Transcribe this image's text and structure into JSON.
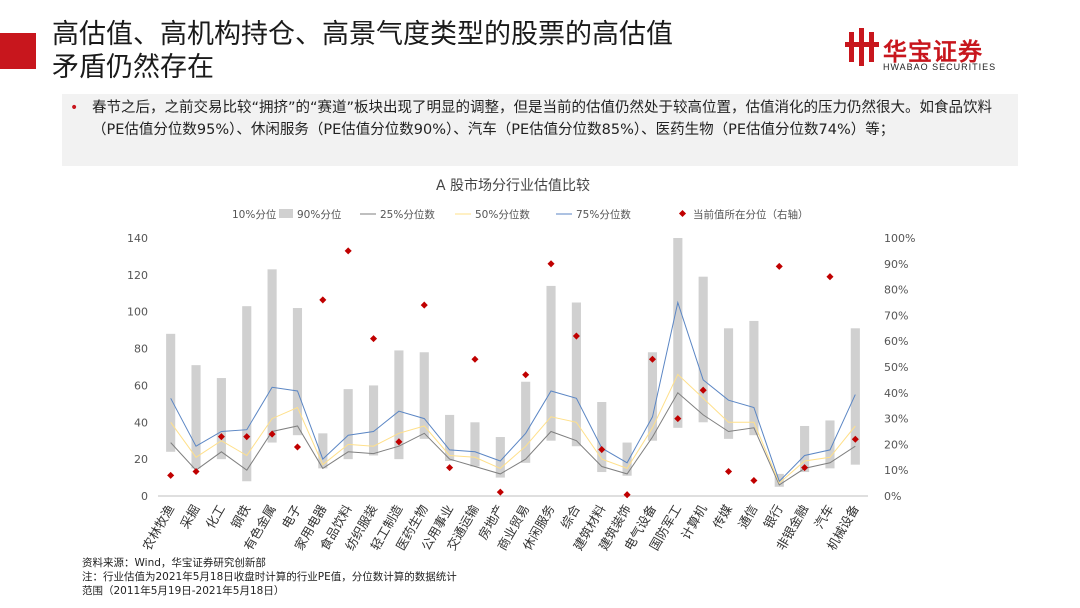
{
  "header": {
    "title_line1": "高估值、高机构持仓、高景气度类型的股票的高估值",
    "title_line2": "矛盾仍然存在",
    "logo_cn": "华宝证券",
    "logo_en": "HWABAO SECURITIES",
    "brand_color": "#c8161d"
  },
  "bullet": {
    "text": "春节之后，之前交易比较“拥挤”的“赛道”板块出现了明显的调整，但是当前的估值仍然处于较高位置，估值消化的压力仍然很大。如食品饮料（PE估值分位数95%）、休闲服务（PE估值分位数90%）、汽车（PE估值分位数85%）、医药生物（PE估值分位数74%）等；"
  },
  "chart_data": {
    "type": "bar",
    "title": "A 股市场分行业估值比较",
    "categories": [
      "农林牧渔",
      "采掘",
      "化工",
      "钢铁",
      "有色金属",
      "电子",
      "家用电器",
      "食品饮料",
      "纺织服装",
      "轻工制造",
      "医药生物",
      "公用事业",
      "交通运输",
      "房地产",
      "商业贸易",
      "休闲服务",
      "综合",
      "建筑材料",
      "建筑装饰",
      "电气设备",
      "国防军工",
      "计算机",
      "传媒",
      "通信",
      "银行",
      "非银金融",
      "汽车",
      "机械设备"
    ],
    "left_axis": {
      "ylim": [
        0,
        140
      ],
      "ticks": [
        "0",
        "20",
        "40",
        "60",
        "80",
        "100",
        "120",
        "140"
      ]
    },
    "right_axis": {
      "ylim": [
        0,
        100
      ],
      "ticks": [
        "0%",
        "10%",
        "20%",
        "30%",
        "40%",
        "50%",
        "60%",
        "70%",
        "80%",
        "90%",
        "100%"
      ]
    },
    "legend": {
      "placement": "top",
      "items": [
        "10%分位",
        "90%分位",
        "25%分位数",
        "50%分位数",
        "75%分位数",
        "当前值所在分位（右轴）"
      ]
    },
    "series": [
      {
        "name": "10%分位",
        "values": [
          24,
          15,
          20,
          8,
          29,
          33,
          15,
          20,
          22,
          20,
          31,
          19,
          16,
          10,
          18,
          30,
          27,
          13,
          11,
          30,
          37,
          40,
          31,
          33,
          5,
          13,
          15,
          17
        ]
      },
      {
        "name": "90%分位",
        "values": [
          88,
          71,
          64,
          103,
          123,
          102,
          34,
          58,
          60,
          79,
          78,
          44,
          40,
          32,
          62,
          114,
          105,
          51,
          29,
          78,
          140,
          119,
          91,
          95,
          12,
          38,
          41,
          91
        ]
      },
      {
        "name": "25%分位数",
        "values": [
          29,
          14,
          24,
          14,
          35,
          38,
          15,
          24,
          23,
          27,
          34,
          20,
          16,
          12,
          20,
          35,
          30,
          16,
          12,
          32,
          56,
          44,
          35,
          37,
          6,
          15,
          18,
          27
        ]
      },
      {
        "name": "50%分位数",
        "values": [
          40,
          21,
          30,
          22,
          42,
          48,
          17,
          28,
          27,
          34,
          38,
          22,
          21,
          15,
          27,
          43,
          40,
          20,
          15,
          37,
          66,
          53,
          40,
          40,
          7,
          19,
          21,
          38
        ]
      },
      {
        "name": "75%分位数",
        "values": [
          53,
          27,
          35,
          36,
          59,
          57,
          20,
          33,
          35,
          46,
          42,
          25,
          24,
          19,
          34,
          57,
          53,
          26,
          18,
          43,
          105,
          63,
          52,
          48,
          8,
          22,
          25,
          55
        ]
      },
      {
        "name": "当前值所在分位（右轴）",
        "values": [
          8,
          9.5,
          23,
          23,
          24,
          19,
          76,
          95,
          61,
          21,
          74,
          11,
          53,
          1.5,
          47,
          90,
          62,
          18,
          0.5,
          53,
          30,
          41,
          9.5,
          6,
          89,
          11,
          85,
          22
        ]
      }
    ],
    "colors": {
      "bar": "#d0d0d0",
      "p25": "#7f7f7f",
      "p50": "#ffe08a",
      "p75": "#5b86c4",
      "current": "#c00000"
    }
  },
  "notes": {
    "source": "资料来源：Wind，华宝证券研究创新部",
    "note1": "注：行业估值为2021年5月18日收盘时计算的行业PE值，分位数计算的数据统计",
    "note2": "范围（2011年5月19日-2021年5月18日）"
  }
}
